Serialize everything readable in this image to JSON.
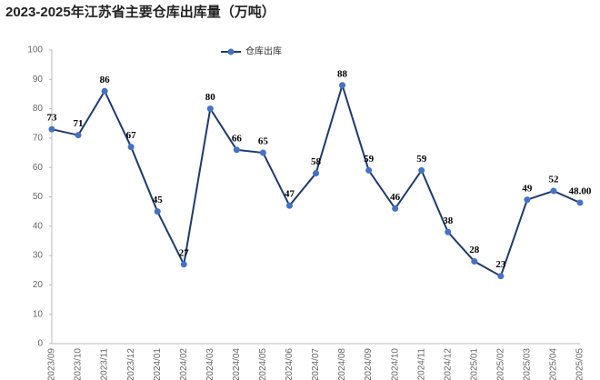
{
  "chart_data": {
    "type": "line",
    "title": "2023-2025年江苏省主要仓库出库量（万吨）",
    "categories": [
      "2023/09",
      "2023/10",
      "2023/11",
      "2023/12",
      "2024/01",
      "2024/02",
      "2024/03",
      "2024/04",
      "2024/05",
      "2024/06",
      "2024/07",
      "2024/08",
      "2024/09",
      "2024/10",
      "2024/11",
      "2024/12",
      "2025/01",
      "2025/02",
      "2025/03",
      "2025/04",
      "2025/05"
    ],
    "series": [
      {
        "name": "仓库出库",
        "color": "#1f3a6e",
        "marker_color": "#4472c4",
        "values": [
          73,
          71,
          86,
          67,
          45,
          27,
          80,
          66,
          65,
          47,
          58,
          88,
          59,
          46,
          59,
          38,
          28,
          23,
          49,
          52,
          48
        ],
        "value_labels": [
          "73",
          "71",
          "86",
          "67",
          "45",
          "27",
          "80",
          "66",
          "65",
          "47",
          "58",
          "88",
          "59",
          "46",
          "59",
          "38",
          "28",
          "23",
          "49",
          "52",
          "48.00"
        ]
      }
    ],
    "ylim": [
      0,
      100
    ],
    "yticks": [
      0,
      10,
      20,
      30,
      40,
      50,
      60,
      70,
      80,
      90,
      100
    ],
    "grid": false,
    "legend": "top"
  }
}
